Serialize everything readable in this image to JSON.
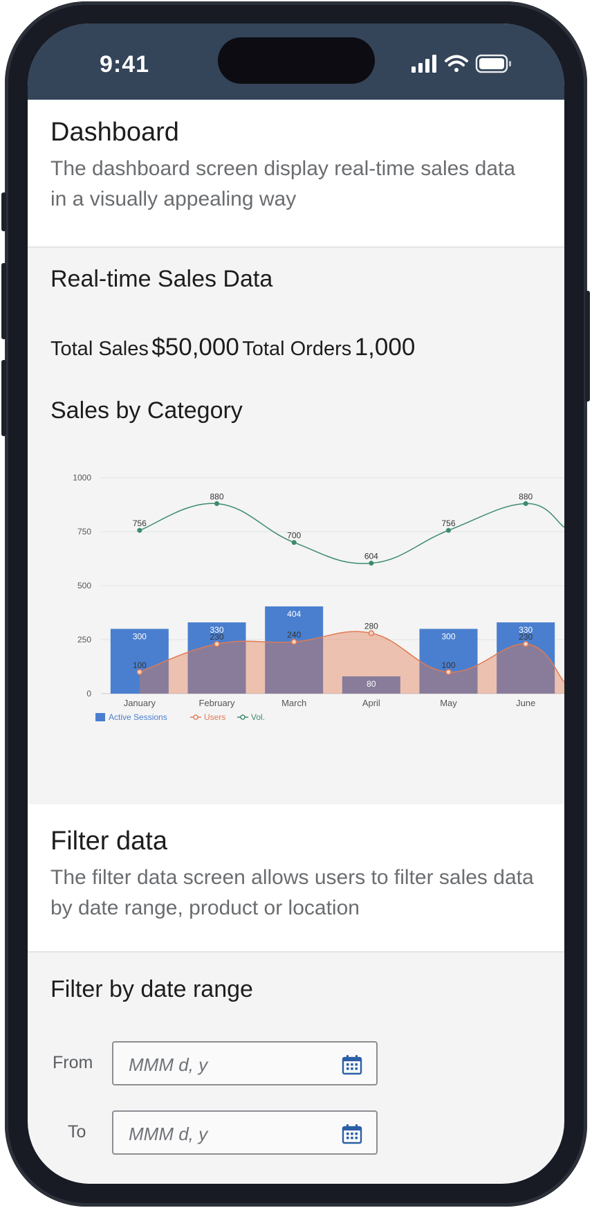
{
  "status_bar": {
    "time": "9:41"
  },
  "dashboard": {
    "title": "Dashboard",
    "subtitle": "The dashboard screen display real-time sales data in a visually appealing way"
  },
  "sales": {
    "title": "Real-time Sales Data",
    "total_sales_label": "Total Sales",
    "total_sales_value": "$50,000",
    "total_orders_label": "Total Orders",
    "total_orders_value": "1,000",
    "category_title": "Sales by Category"
  },
  "chart_data": {
    "type": "bar",
    "categories": [
      "January",
      "February",
      "March",
      "April",
      "May",
      "June"
    ],
    "series": [
      {
        "name": "Active Sessions",
        "type": "bar",
        "values": [
          300,
          330,
          404,
          80,
          300,
          330
        ],
        "color": "#4a7fcf"
      },
      {
        "name": "Users",
        "type": "area",
        "values": [
          100,
          230,
          240,
          280,
          100,
          230
        ],
        "color": "#e07a52"
      },
      {
        "name": "Vol.",
        "type": "line",
        "values": [
          756,
          880,
          700,
          604,
          756,
          880
        ],
        "color": "#3d8b6b"
      }
    ],
    "y_ticks": [
      "0",
      "250",
      "500",
      "750",
      "1000"
    ],
    "ylim": [
      0,
      1000
    ],
    "grid": true,
    "legend": "bottom-left"
  },
  "filter": {
    "title": "Filter data",
    "subtitle": "The filter data screen allows users to filter sales data by date range, product or location",
    "date_range_title": "Filter by date range",
    "from_label": "From",
    "to_label": "To",
    "from_placeholder": "MMM d, y",
    "to_placeholder": "MMM d, y"
  }
}
